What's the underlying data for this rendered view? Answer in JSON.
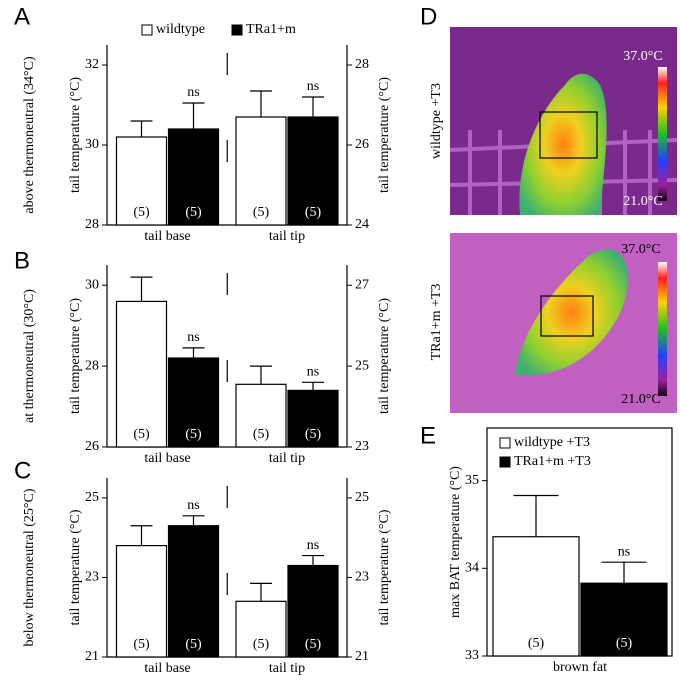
{
  "chart_data": [
    {
      "type": "bar",
      "panel": "A",
      "row_label": "above thermoneutral (34°C)",
      "ylabel": "tail temperature (°C)",
      "y2label": "tail temperature (°C)",
      "categories": [
        "tail base",
        "tail tip"
      ],
      "category_axis": [
        "y",
        "y2"
      ],
      "ylim": [
        28,
        32.5
      ],
      "yticks": [
        28,
        30,
        32
      ],
      "y2lim": [
        24,
        28.5
      ],
      "y2ticks": [
        24,
        26,
        28
      ],
      "series": [
        {
          "name": "wildtype",
          "color": "#ffffff",
          "values": [
            30.2,
            26.7
          ],
          "errors": [
            0.4,
            0.65
          ],
          "n_labels": [
            "(5)",
            "(5)"
          ]
        },
        {
          "name": "TRa1+m",
          "color": "#000000",
          "values": [
            30.4,
            26.7
          ],
          "errors": [
            0.65,
            0.5
          ],
          "n_labels": [
            "(5)",
            "(5)"
          ],
          "annotations": [
            "ns",
            "ns"
          ]
        }
      ]
    },
    {
      "type": "bar",
      "panel": "B",
      "row_label": "at thermoneutral (30°C)",
      "ylabel": "tail temperature (°C)",
      "y2label": "tail temperature (°C)",
      "categories": [
        "tail base",
        "tail tip"
      ],
      "category_axis": [
        "y",
        "y2"
      ],
      "ylim": [
        26,
        30.5
      ],
      "yticks": [
        26,
        28,
        30
      ],
      "y2lim": [
        23,
        27.5
      ],
      "y2ticks": [
        23,
        25,
        27
      ],
      "series": [
        {
          "color": "#ffffff",
          "values": [
            29.6,
            24.55
          ],
          "errors": [
            0.6,
            0.45
          ],
          "n_labels": [
            "(5)",
            "(5)"
          ]
        },
        {
          "color": "#000000",
          "values": [
            28.2,
            24.4
          ],
          "errors": [
            0.25,
            0.2
          ],
          "n_labels": [
            "(5)",
            "(5)"
          ],
          "annotations": [
            "ns",
            "ns"
          ]
        }
      ]
    },
    {
      "type": "bar",
      "panel": "C",
      "row_label": "below thermoneutral (25°C)",
      "ylabel": "tail temperature (°C)",
      "y2label": "tail temperature (°C)",
      "categories": [
        "tail base",
        "tail tip"
      ],
      "category_axis": [
        "y",
        "y2"
      ],
      "ylim": [
        21,
        25.5
      ],
      "yticks": [
        21,
        23,
        25
      ],
      "y2lim": [
        21,
        25.5
      ],
      "y2ticks": [
        21,
        23,
        25
      ],
      "series": [
        {
          "color": "#ffffff",
          "values": [
            23.8,
            22.4
          ],
          "errors": [
            0.5,
            0.45
          ],
          "n_labels": [
            "(5)",
            "(5)"
          ]
        },
        {
          "color": "#000000",
          "values": [
            24.3,
            23.3
          ],
          "errors": [
            0.25,
            0.25
          ],
          "n_labels": [
            "(5)",
            "(5)"
          ],
          "annotations": [
            "ns",
            "ns"
          ]
        }
      ]
    },
    {
      "type": "bar",
      "panel": "E",
      "ylabel": "max BAT temperature (°C)",
      "categories": [
        "brown fat"
      ],
      "category_axis": [
        "y"
      ],
      "ylim": [
        33,
        35.6
      ],
      "yticks": [
        33,
        34,
        35
      ],
      "series": [
        {
          "name": "wildtype +T3",
          "color": "#ffffff",
          "values": [
            34.36
          ],
          "errors": [
            0.47
          ],
          "n_labels": [
            "(5)"
          ]
        },
        {
          "name": "TRa1+m +T3",
          "color": "#000000",
          "values": [
            33.83
          ],
          "errors": [
            0.24
          ],
          "n_labels": [
            "(5)"
          ],
          "annotations": [
            "ns"
          ]
        }
      ]
    }
  ],
  "thermal_images": {
    "panel": "D",
    "images": [
      {
        "label": "wildtype +T3",
        "scale_max": "37.0°C",
        "scale_min": "21.0°C"
      },
      {
        "label": "TRa1+m +T3",
        "scale_max": "37.0°C",
        "scale_min": "21.0°C"
      }
    ]
  }
}
